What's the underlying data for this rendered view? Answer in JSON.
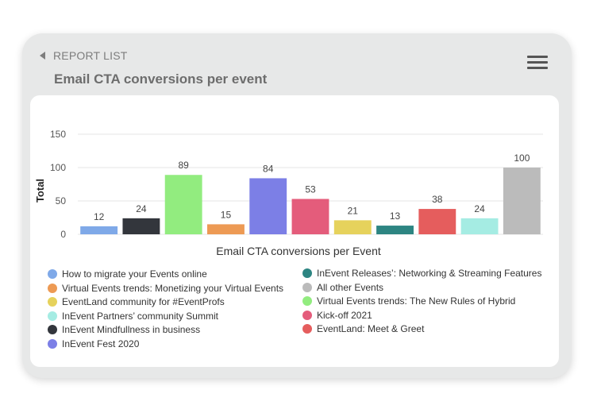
{
  "header": {
    "back_label": "REPORT LIST",
    "title": "Email CTA conversions per event"
  },
  "chart_data": {
    "type": "bar",
    "title": "",
    "xlabel": "Email CTA conversions per Event",
    "ylabel": "Total",
    "ylim": [
      0,
      150
    ],
    "yticks": [
      0,
      50,
      100,
      150
    ],
    "grid": "horizontal",
    "bars": [
      {
        "value": 12,
        "color": "#7fa9e8"
      },
      {
        "value": 24,
        "color": "#33363c"
      },
      {
        "value": 89,
        "color": "#92ec7f"
      },
      {
        "value": 15,
        "color": "#ed9a54"
      },
      {
        "value": 84,
        "color": "#7c7fe6"
      },
      {
        "value": 53,
        "color": "#e45c7b"
      },
      {
        "value": 21,
        "color": "#e6d25c"
      },
      {
        "value": 13,
        "color": "#2d8582"
      },
      {
        "value": 38,
        "color": "#e55d5d"
      },
      {
        "value": 24,
        "color": "#a5ece3"
      },
      {
        "value": 100,
        "color": "#bbbbbb"
      }
    ],
    "legend": [
      {
        "label": "How to migrate your Events online",
        "color": "#7fa9e8"
      },
      {
        "label": "Virtual Events trends: Monetizing your Virtual Events",
        "color": "#ed9a54"
      },
      {
        "label": "EventLand community for #EventProfs",
        "color": "#e6d25c"
      },
      {
        "label": "InEvent Partners’ community Summit",
        "color": "#a5ece3"
      },
      {
        "label": "InEvent Mindfullness in business",
        "color": "#33363c"
      },
      {
        "label": "InEvent Fest 2020",
        "color": "#7c7fe6"
      },
      {
        "label": "InEvent Releases’: Networking & Streaming Features",
        "color": "#2d8582"
      },
      {
        "label": "All other Events",
        "color": "#bbbbbb"
      },
      {
        "label": "Virtual Events trends: The New Rules of Hybrid",
        "color": "#92ec7f"
      },
      {
        "label": "Kick-off 2021",
        "color": "#e45c7b"
      },
      {
        "label": "EventLand: Meet & Greet",
        "color": "#e55d5d"
      }
    ]
  }
}
